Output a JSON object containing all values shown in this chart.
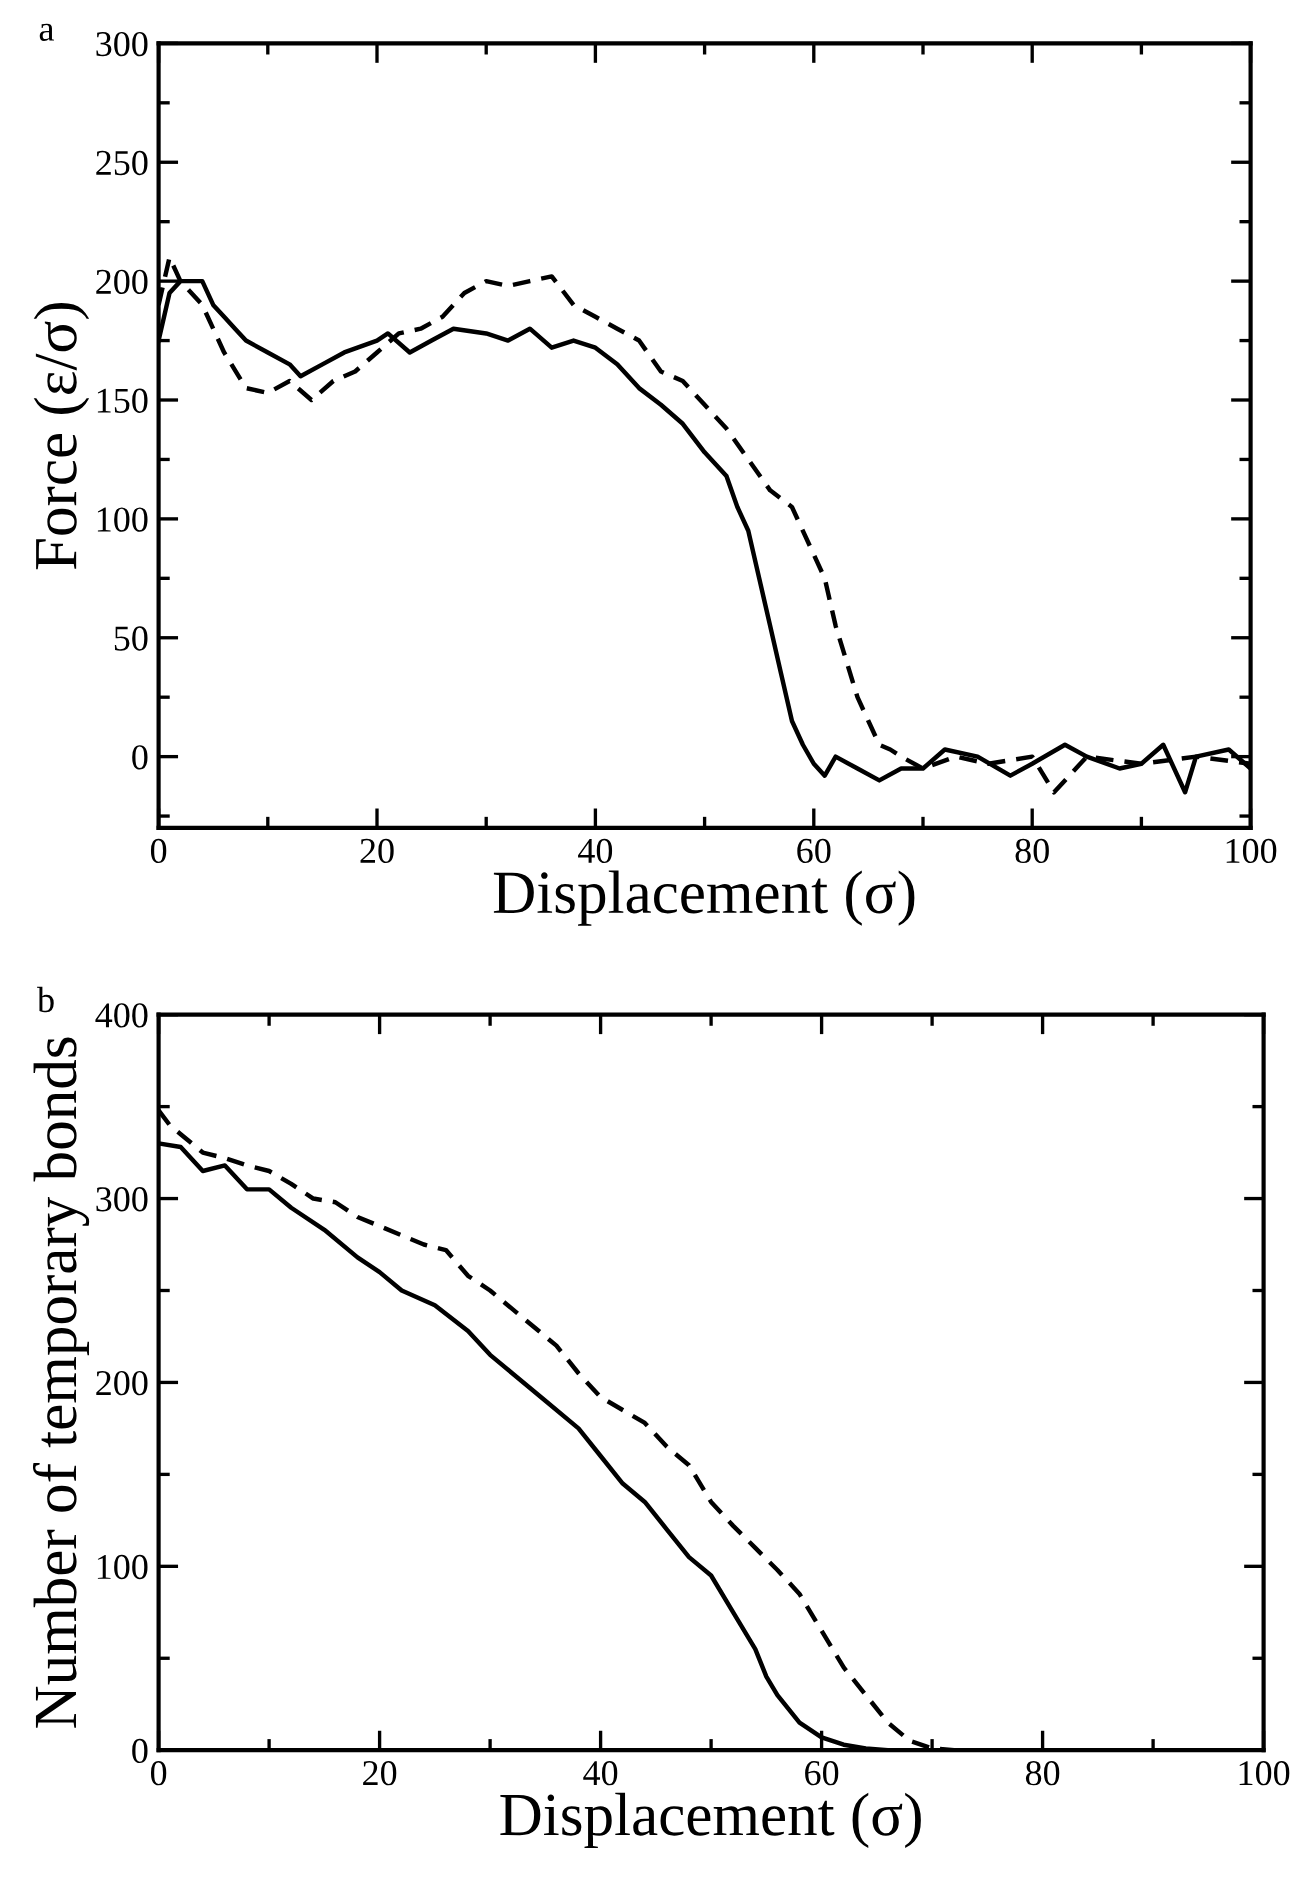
{
  "chart_data": [
    {
      "type": "line",
      "title": "a",
      "xlabel": "Displacement (σ)",
      "ylabel": "Force (ε/σ)",
      "xlim": [
        0,
        100
      ],
      "xticks": [
        0,
        20,
        40,
        60,
        80,
        100
      ],
      "ylim": [
        -30,
        300
      ],
      "yticks": [
        0,
        50,
        100,
        150,
        200,
        250,
        300
      ],
      "grid": false,
      "legend": false,
      "marker": "none",
      "series": [
        {
          "color": "#000000",
          "line_style": "solid",
          "x": [
            0,
            1,
            2,
            4,
            5,
            6,
            7,
            8,
            10,
            12,
            13,
            15,
            17,
            20,
            21,
            23,
            25,
            27,
            30,
            32,
            34,
            36,
            38,
            40,
            42,
            44,
            46,
            48,
            50,
            52,
            53,
            54,
            55,
            56,
            57,
            58,
            59,
            60,
            61,
            62,
            64,
            66,
            68,
            70,
            72,
            75,
            78,
            80,
            83,
            85,
            88,
            90,
            92,
            94,
            95,
            98,
            100
          ],
          "values": [
            175,
            195,
            200,
            200,
            190,
            185,
            180,
            175,
            170,
            165,
            160,
            165,
            170,
            175,
            178,
            170,
            175,
            180,
            178,
            175,
            180,
            172,
            175,
            172,
            165,
            155,
            148,
            140,
            128,
            118,
            105,
            95,
            75,
            55,
            35,
            15,
            5,
            -3,
            -8,
            0,
            -5,
            -10,
            -5,
            -5,
            3,
            0,
            -8,
            -3,
            5,
            0,
            -5,
            -3,
            5,
            -15,
            0,
            3,
            -5
          ]
        },
        {
          "color": "#000000",
          "line_style": "dashed",
          "x": [
            0,
            1,
            2,
            4,
            6,
            8,
            10,
            12,
            14,
            16,
            18,
            20,
            22,
            24,
            26,
            28,
            30,
            32,
            34,
            36,
            38,
            40,
            42,
            44,
            46,
            48,
            50,
            52,
            54,
            56,
            58,
            60,
            61,
            62,
            63,
            64,
            65,
            66,
            67,
            68,
            70,
            73,
            76,
            80,
            82,
            85,
            90,
            95,
            100
          ],
          "values": [
            190,
            210,
            200,
            190,
            170,
            155,
            153,
            158,
            150,
            158,
            162,
            170,
            178,
            180,
            185,
            195,
            200,
            198,
            200,
            202,
            190,
            185,
            180,
            175,
            162,
            158,
            148,
            138,
            125,
            112,
            105,
            85,
            75,
            55,
            40,
            25,
            15,
            5,
            3,
            0,
            -5,
            0,
            -3,
            0,
            -15,
            0,
            -3,
            0,
            -3
          ]
        }
      ]
    },
    {
      "type": "line",
      "title": "b",
      "xlabel": "Displacement (σ)",
      "ylabel": "Number of temporary bonds",
      "xlim": [
        0,
        100
      ],
      "xticks": [
        0,
        20,
        40,
        60,
        80,
        100
      ],
      "ylim": [
        0,
        400
      ],
      "yticks": [
        0,
        100,
        200,
        300,
        400
      ],
      "grid": false,
      "legend": false,
      "marker": "none",
      "series": [
        {
          "color": "#000000",
          "line_style": "solid",
          "x": [
            0,
            2,
            4,
            6,
            8,
            10,
            12,
            15,
            18,
            20,
            22,
            25,
            28,
            30,
            32,
            35,
            38,
            40,
            42,
            44,
            46,
            48,
            50,
            52,
            54,
            55,
            56,
            58,
            60,
            62,
            64,
            66,
            100
          ],
          "values": [
            330,
            328,
            315,
            318,
            305,
            305,
            295,
            283,
            268,
            260,
            250,
            242,
            228,
            215,
            205,
            190,
            175,
            160,
            145,
            135,
            120,
            105,
            95,
            75,
            55,
            40,
            30,
            15,
            7,
            3,
            1,
            0,
            0
          ]
        },
        {
          "color": "#000000",
          "line_style": "dashed",
          "x": [
            0,
            1,
            2,
            4,
            6,
            8,
            10,
            12,
            14,
            16,
            18,
            20,
            22,
            24,
            26,
            28,
            30,
            32,
            34,
            36,
            38,
            40,
            42,
            44,
            46,
            48,
            50,
            52,
            54,
            56,
            58,
            60,
            62,
            64,
            66,
            68,
            70,
            72,
            100
          ],
          "values": [
            348,
            340,
            335,
            325,
            322,
            318,
            315,
            308,
            300,
            298,
            290,
            285,
            280,
            275,
            272,
            258,
            250,
            240,
            230,
            220,
            205,
            192,
            185,
            178,
            165,
            155,
            135,
            122,
            110,
            98,
            85,
            65,
            45,
            30,
            15,
            5,
            1,
            0,
            0
          ]
        }
      ]
    }
  ]
}
